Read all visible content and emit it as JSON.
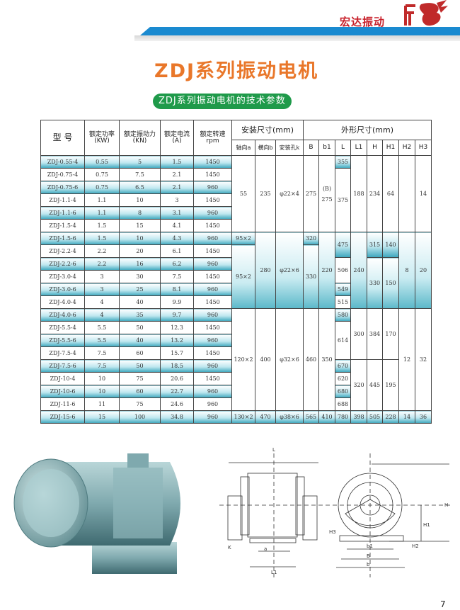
{
  "header": {
    "brand": "宏达振动",
    "logo_text": "HD"
  },
  "title": "ZDJ系列振动电机",
  "subtitle": "ZDJ系列振动电机的技术参数",
  "table": {
    "headers": {
      "model": "型 号",
      "power": [
        "额定功率",
        "(KW)"
      ],
      "force": [
        "额定振动力",
        "(KN)"
      ],
      "current": [
        "额定电流",
        "(A)"
      ],
      "speed": [
        "额定转速",
        "rpm"
      ],
      "mounting": "安装尺寸(mm)",
      "outline": "外形尺寸(mm)",
      "a": "轴向a",
      "b": "横向b",
      "k": "安装孔k",
      "B": "B",
      "b1": "b1",
      "L": "L",
      "L1": "L1",
      "H": "H",
      "H1": "H1",
      "H2": "H2",
      "H3": "H3"
    },
    "rows": [
      [
        "ZDJ-0.55-4",
        "0.55",
        "5",
        "1.5",
        "1450"
      ],
      [
        "ZDJ-0.75-4",
        "0.75",
        "7.5",
        "2.1",
        "1450"
      ],
      [
        "ZDJ-0.75-6",
        "0.75",
        "6.5",
        "2.1",
        "960"
      ],
      [
        "ZDJ-1.1-4",
        "1.1",
        "10",
        "3",
        "1450"
      ],
      [
        "ZDJ-1.1-6",
        "1.1",
        "8",
        "3.1",
        "960"
      ],
      [
        "ZDJ-1.5-4",
        "1.5",
        "15",
        "4.1",
        "1450"
      ],
      [
        "ZDJ-1.5-6",
        "1.5",
        "10",
        "4.3",
        "960"
      ],
      [
        "ZDJ-2.2-4",
        "2.2",
        "20",
        "6.1",
        "1450"
      ],
      [
        "ZDJ-2.2-6",
        "2.2",
        "16",
        "6.2",
        "960"
      ],
      [
        "ZDJ-3.0-4",
        "3",
        "30",
        "7.5",
        "1450"
      ],
      [
        "ZDJ-3.0-6",
        "3",
        "25",
        "8.1",
        "960"
      ],
      [
        "ZDJ-4.0-4",
        "4",
        "40",
        "9.9",
        "1450"
      ],
      [
        "ZDJ-4.0-6",
        "4",
        "35",
        "9.7",
        "960"
      ],
      [
        "ZDJ-5.5-4",
        "5.5",
        "50",
        "12.3",
        "1450"
      ],
      [
        "ZDJ-5.5-6",
        "5.5",
        "40",
        "13.2",
        "960"
      ],
      [
        "ZDJ-7.5-4",
        "7.5",
        "60",
        "15.7",
        "1450"
      ],
      [
        "ZDJ-7.5-6",
        "7.5",
        "50",
        "18.5",
        "960"
      ],
      [
        "ZDJ-10-4",
        "10",
        "75",
        "20.6",
        "1450"
      ],
      [
        "ZDJ-10-6",
        "10",
        "60",
        "22.7",
        "960"
      ],
      [
        "ZDJ-11-6",
        "11",
        "75",
        "24.6",
        "960"
      ],
      [
        "ZDJ-15-6",
        "15",
        "100",
        "34.8",
        "960"
      ]
    ],
    "dims": {
      "g1": {
        "a": "55",
        "b": "235",
        "k": "φ22×4",
        "B": "275",
        "b1_note": "(B)",
        "b1": "275",
        "L": [
          "355",
          "375"
        ],
        "L1": "188",
        "H": "234",
        "H1": "64",
        "H3": "14"
      },
      "g2": {
        "a": [
          "95×2",
          "95×2"
        ],
        "b": "280",
        "k": "φ22×6",
        "B": [
          "320",
          "330"
        ],
        "b1": "220",
        "L": [
          "475",
          "506",
          "549",
          "515"
        ],
        "L1": "240",
        "H": [
          "315",
          "330"
        ],
        "H1": [
          "140",
          "150"
        ],
        "H2": "8",
        "H3": "20"
      },
      "g3": {
        "a": "120×2",
        "b": "400",
        "k": "φ32×6",
        "B": "460",
        "b1": "350",
        "L": [
          "580",
          "614",
          "670",
          "620",
          "680",
          "688"
        ],
        "L1": [
          "300",
          "320"
        ],
        "H": [
          "384",
          "445"
        ],
        "H1": [
          "170",
          "195"
        ],
        "H2": "12",
        "H3": "32"
      },
      "g4": {
        "a": "130×2",
        "b": "470",
        "k": "φ38×6",
        "B": "565",
        "b1": "410",
        "L": "780",
        "L1": "398",
        "H": "505",
        "H1": "228",
        "H2": "14",
        "H3": "36"
      }
    }
  },
  "drawing_labels": {
    "L": "L",
    "L1": "L1",
    "a": "a",
    "K": "K",
    "H": "H",
    "H1": "H1",
    "H2": "H2",
    "H3": "H3",
    "b1": "b1",
    "B": "B",
    "b": "b"
  },
  "colors": {
    "title": "#e9772a",
    "subtitle_bg": "#1f9a4a",
    "bar": "#1a8ad0",
    "brand": "#c8202a",
    "cell_highlight": "#3aa6bd"
  },
  "page_number": "7"
}
